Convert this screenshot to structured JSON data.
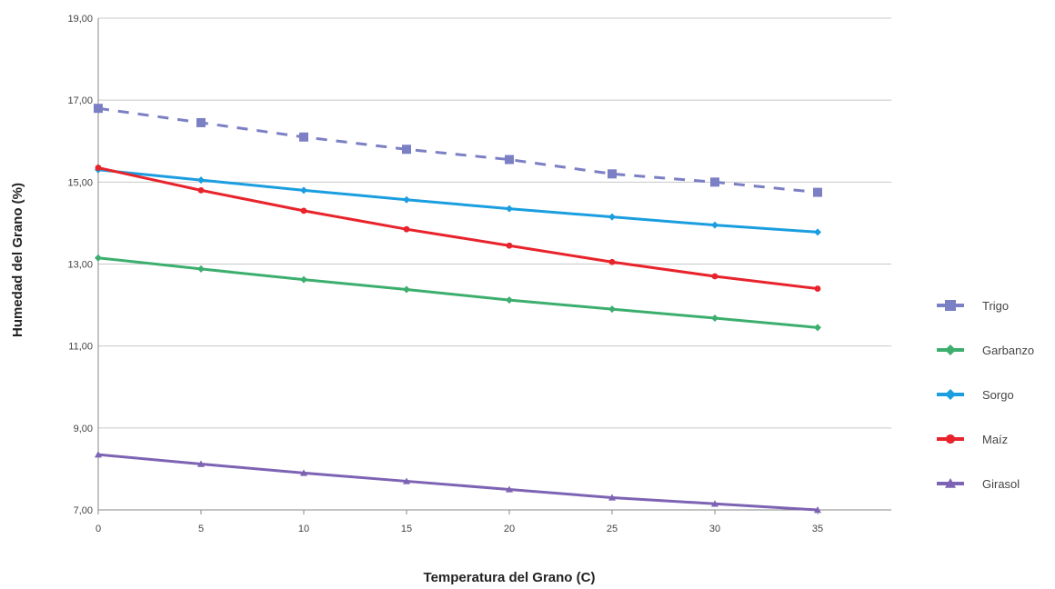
{
  "chart_data": {
    "type": "line",
    "xlabel": "Temperatura del Grano (C)",
    "ylabel": "Humedad del Grano (%)",
    "x": [
      0,
      5,
      10,
      15,
      20,
      25,
      30,
      35
    ],
    "x_tick_labels": [
      "0",
      "5",
      "10",
      "15",
      "20",
      "25",
      "30",
      "35"
    ],
    "ylim": [
      7,
      19
    ],
    "y_ticks": [
      7,
      9,
      11,
      13,
      15,
      17,
      19
    ],
    "y_tick_labels": [
      "7,00",
      "9,00",
      "11,00",
      "13,00",
      "15,00",
      "17,00",
      "19,00"
    ],
    "grid": "horizontal",
    "legend_position": "right",
    "series": [
      {
        "name": "Trigo",
        "color": "#7b7fc4",
        "dashed": true,
        "marker": "square",
        "values": [
          16.8,
          16.45,
          16.1,
          15.8,
          15.55,
          15.2,
          15.0,
          14.75
        ]
      },
      {
        "name": "Garbanzo",
        "color": "#3cae6e",
        "dashed": false,
        "marker": "diamond",
        "values": [
          13.15,
          12.88,
          12.62,
          12.38,
          12.12,
          11.9,
          11.68,
          11.45
        ]
      },
      {
        "name": "Sorgo",
        "color": "#1a9ee0",
        "dashed": false,
        "marker": "diamond",
        "values": [
          15.3,
          15.05,
          14.8,
          14.57,
          14.35,
          14.15,
          13.95,
          13.78
        ]
      },
      {
        "name": "Maíz",
        "color": "#e8232b",
        "dashed": false,
        "marker": "circle",
        "values": [
          15.35,
          14.8,
          14.3,
          13.85,
          13.45,
          13.05,
          12.7,
          12.4
        ]
      },
      {
        "name": "Girasol",
        "color": "#7d63b3",
        "dashed": false,
        "marker": "triangle",
        "values": [
          8.35,
          8.12,
          7.9,
          7.7,
          7.5,
          7.3,
          7.15,
          7.0
        ]
      }
    ]
  }
}
